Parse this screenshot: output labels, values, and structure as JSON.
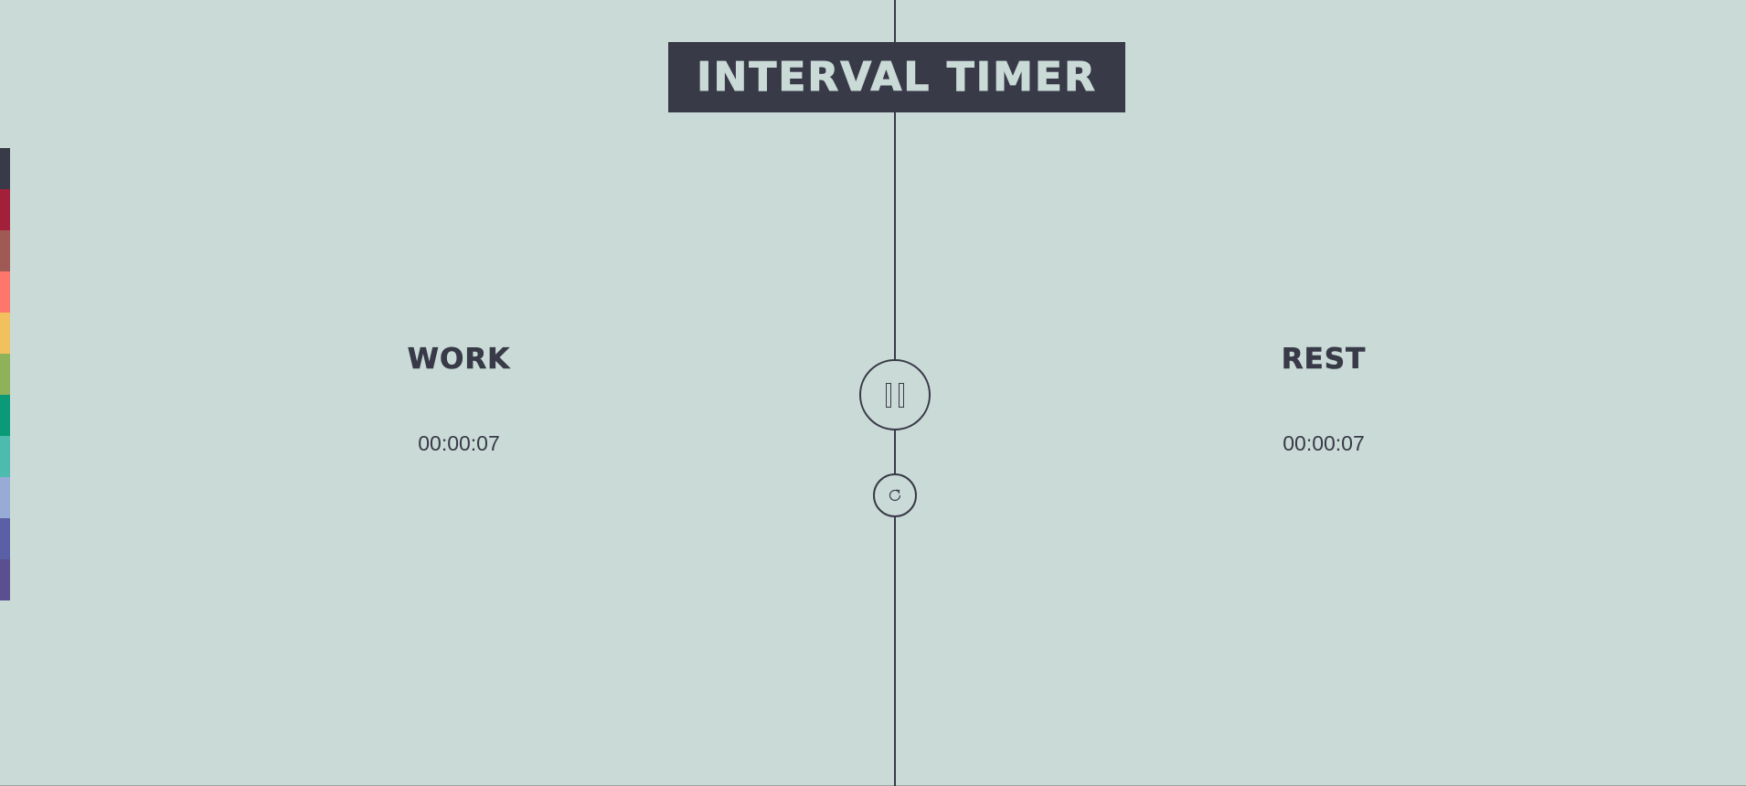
{
  "header": {
    "title": "INTERVAL TIMER"
  },
  "color_swatches": [
    {
      "name": "dark-slate",
      "color": "#383a47"
    },
    {
      "name": "crimson",
      "color": "#a2203a"
    },
    {
      "name": "brick",
      "color": "#a05a55"
    },
    {
      "name": "coral",
      "color": "#ff776b"
    },
    {
      "name": "amber",
      "color": "#f3c05f"
    },
    {
      "name": "olive-green",
      "color": "#8eb25a"
    },
    {
      "name": "emerald",
      "color": "#0b9a78"
    },
    {
      "name": "teal",
      "color": "#4dbcae"
    },
    {
      "name": "periwinkle",
      "color": "#97abd6"
    },
    {
      "name": "indigo",
      "color": "#5b5fa6"
    },
    {
      "name": "purple",
      "color": "#5a4f8f"
    }
  ],
  "work": {
    "label": "WORK",
    "time": "00:00:07"
  },
  "rest": {
    "label": "REST",
    "time": "00:00:07"
  },
  "controls": {
    "pause_icon": "pause-icon",
    "reset_icon": "refresh-icon"
  },
  "colors": {
    "background": "#cadad7",
    "foreground": "#383a47"
  }
}
